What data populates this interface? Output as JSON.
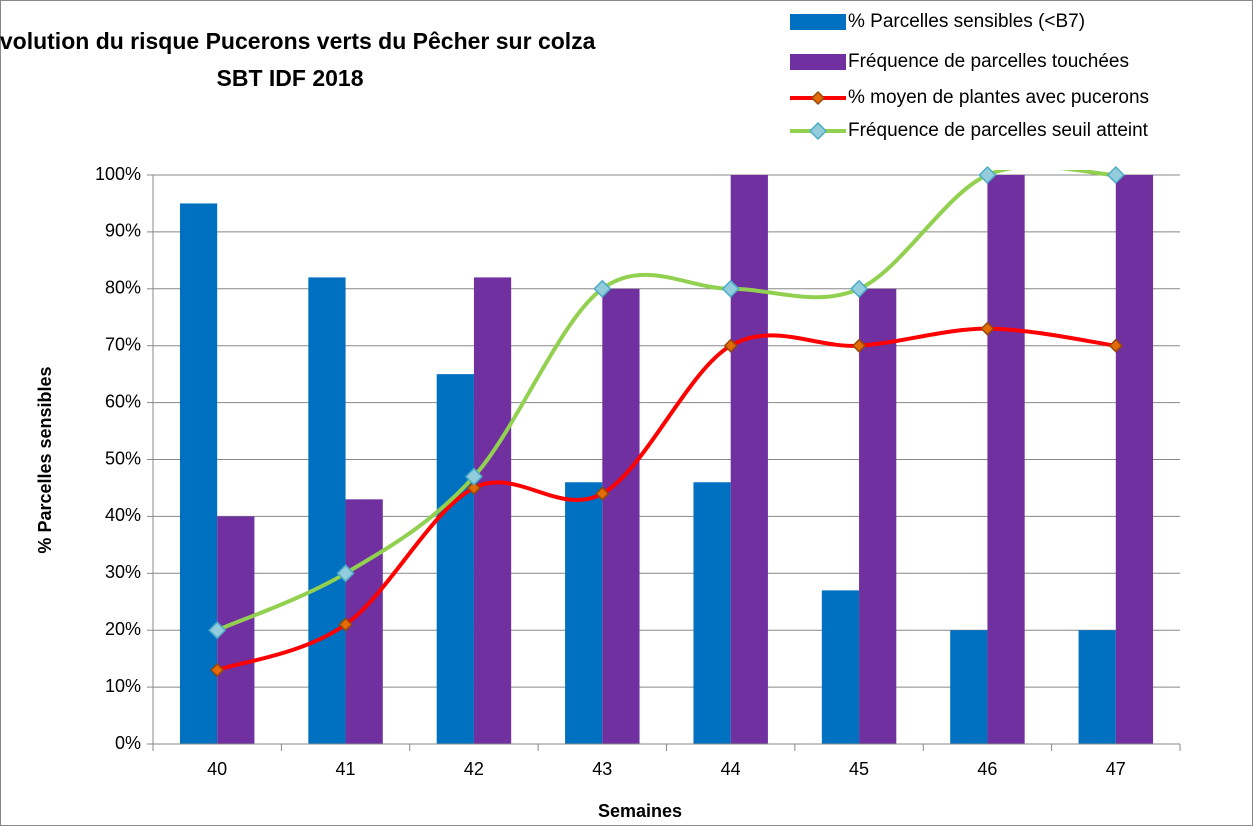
{
  "chart_data": {
    "type": "bar-line",
    "title": [
      "Evolution du risque Pucerons verts  du Pêcher sur colza",
      "SBT IDF 2018"
    ],
    "x_label": "Semaines",
    "y_label": "% Parcelles sensibles",
    "categories": [
      "40",
      "41",
      "42",
      "43",
      "44",
      "45",
      "46",
      "47"
    ],
    "series": [
      {
        "name": "% Parcelles sensibles (<B7)",
        "type": "bar",
        "color": "#0070c0",
        "values": [
          95,
          82,
          65,
          46,
          46,
          27,
          20,
          20
        ]
      },
      {
        "name": "Fréquence de parcelles touchées",
        "type": "bar",
        "color": "#7030a0",
        "values": [
          40,
          43,
          82,
          80,
          100,
          80,
          100,
          100
        ]
      },
      {
        "name": "% moyen de plantes avec pucerons",
        "type": "line",
        "color": "#ff0000",
        "marker_color": "#e36c09",
        "values": [
          13,
          21,
          45,
          44,
          70,
          70,
          73,
          70
        ]
      },
      {
        "name": "Fréquence de parcelles seuil atteint",
        "type": "line",
        "color": "#92d050",
        "marker_color": "#93cddd",
        "values": [
          20,
          30,
          47,
          80,
          80,
          80,
          100,
          100
        ]
      }
    ],
    "ylim": [
      0,
      100
    ],
    "yticks": [
      {
        "value": 0,
        "label": "0%"
      },
      {
        "value": 10,
        "label": "10%"
      },
      {
        "value": 20,
        "label": "20%"
      },
      {
        "value": 30,
        "label": "30%"
      },
      {
        "value": 40,
        "label": "40%"
      },
      {
        "value": 50,
        "label": "50%"
      },
      {
        "value": 60,
        "label": "60%"
      },
      {
        "value": 70,
        "label": "70%"
      },
      {
        "value": 80,
        "label": "80%"
      },
      {
        "value": 90,
        "label": "90%"
      },
      {
        "value": 100,
        "label": "100%"
      }
    ],
    "grid": true,
    "legend": "top-right"
  }
}
